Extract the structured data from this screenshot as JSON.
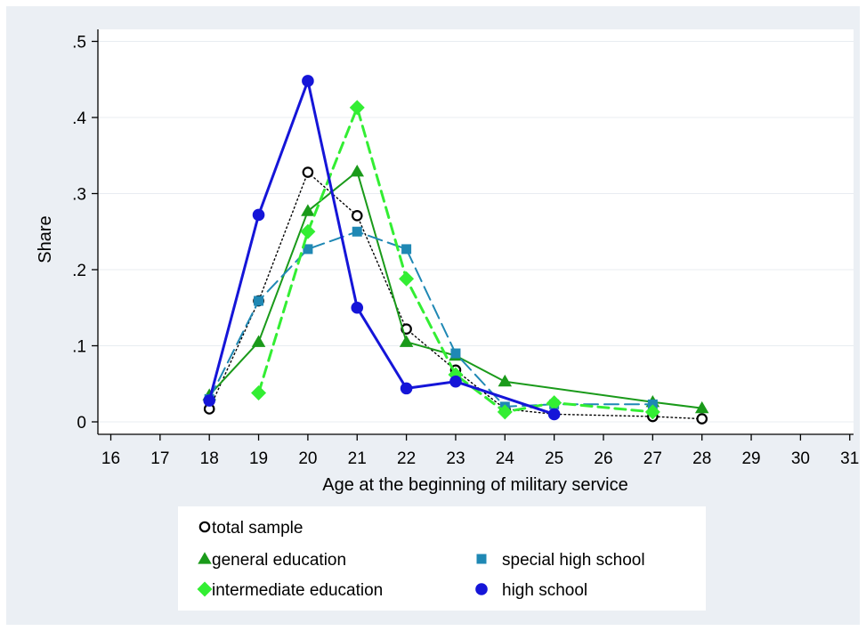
{
  "chart_data": {
    "type": "line",
    "title": "",
    "xlabel": "Age at the beginning of military service",
    "ylabel": "Share",
    "xlim": [
      16,
      31
    ],
    "ylim": [
      0,
      0.5
    ],
    "x_ticks": [
      16,
      17,
      18,
      19,
      20,
      21,
      22,
      23,
      24,
      25,
      26,
      27,
      28,
      29,
      30,
      31
    ],
    "x_tick_labels": [
      "16",
      "17",
      "18",
      "19",
      "20",
      "21",
      "22",
      "23",
      "24",
      "25",
      "26",
      "27",
      "28",
      "29",
      "30",
      "31"
    ],
    "y_ticks": [
      0,
      0.1,
      0.2,
      0.3,
      0.4,
      0.5
    ],
    "y_tick_labels": [
      "0",
      ".1",
      ".2",
      ".3",
      ".4",
      ".5"
    ],
    "grid": true,
    "legend_position": "bottom",
    "series": [
      {
        "name": "total sample",
        "color": "#000000",
        "marker": "hollow-circle",
        "line": "dotted",
        "x": [
          18,
          19,
          20,
          21,
          22,
          23,
          24,
          25,
          27,
          28
        ],
        "y": [
          0.017,
          0.159,
          0.328,
          0.271,
          0.122,
          0.068,
          0.017,
          0.01,
          0.007,
          0.004
        ]
      },
      {
        "name": "general education",
        "color": "#1a9a1a",
        "marker": "triangle",
        "line": "solid",
        "x": [
          18,
          19,
          20,
          21,
          22,
          23,
          24,
          27,
          28
        ],
        "y": [
          0.035,
          0.105,
          0.277,
          0.329,
          0.105,
          0.087,
          0.053,
          0.026,
          0.018
        ]
      },
      {
        "name": "special high school",
        "color": "#1f88b4",
        "marker": "square",
        "line": "longdash",
        "x": [
          18,
          19,
          20,
          21,
          22,
          23,
          24,
          25,
          27
        ],
        "y": [
          0.03,
          0.159,
          0.227,
          0.25,
          0.227,
          0.09,
          0.02,
          0.023,
          0.023
        ]
      },
      {
        "name": "intermediate education",
        "color": "#33ee33",
        "marker": "diamond",
        "line": "dashed",
        "x": [
          19,
          20,
          21,
          22,
          23,
          24,
          25,
          27
        ],
        "y": [
          0.038,
          0.25,
          0.413,
          0.188,
          0.062,
          0.013,
          0.025,
          0.013
        ]
      },
      {
        "name": "high school",
        "color": "#1515d8",
        "marker": "filled-circle",
        "line": "solid-thick",
        "x": [
          18,
          19,
          20,
          21,
          22,
          23,
          25
        ],
        "y": [
          0.028,
          0.272,
          0.448,
          0.15,
          0.044,
          0.053,
          0.01
        ]
      }
    ]
  },
  "colors": {
    "outer_background": "#ebeff4",
    "plot_background": "#ffffff",
    "legend_background": "#ffffff",
    "gridline": "#e8ecf1"
  }
}
